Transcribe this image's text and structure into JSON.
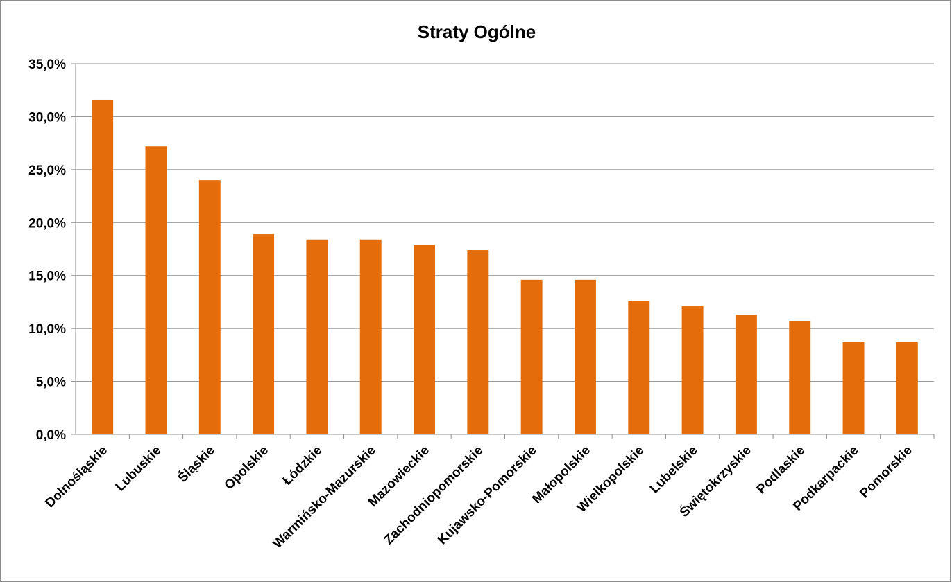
{
  "chart_data": {
    "type": "bar",
    "title": "Straty Ogólne",
    "xlabel": "",
    "ylabel": "",
    "categories": [
      "Dolnośląskie",
      "Lubuskie",
      "Śląskie",
      "Opolskie",
      "Łódzkie",
      "Warmińsko-Mazurskie",
      "Mazowieckie",
      "Zachodniopomorskie",
      "Kujawsko-Pomorskie",
      "Małopolskie",
      "Wielkopolskie",
      "Lubelskie",
      "Świętokrzyskie",
      "Podlaskie",
      "Podkarpackie",
      "Pomorskie"
    ],
    "values": [
      31.6,
      27.2,
      24.0,
      18.9,
      18.4,
      18.4,
      17.9,
      17.4,
      14.6,
      14.6,
      12.6,
      12.1,
      11.3,
      10.7,
      8.7,
      8.7
    ],
    "ylim": [
      0,
      35
    ],
    "yticks": [
      "0,0%",
      "5,0%",
      "10,0%",
      "15,0%",
      "20,0%",
      "25,0%",
      "30,0%",
      "35,0%"
    ],
    "grid": true,
    "legend": "none",
    "bar_color": "#e46c0a"
  }
}
